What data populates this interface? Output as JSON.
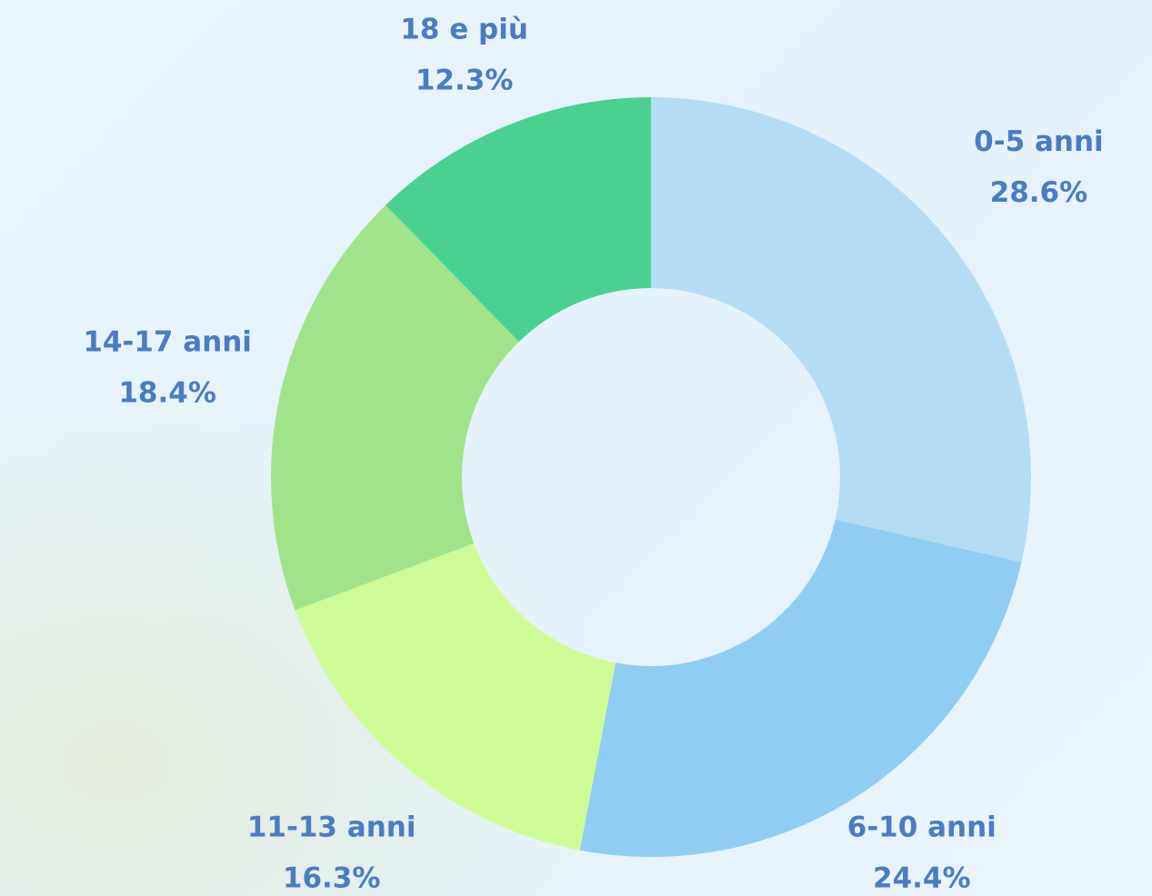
{
  "chart_data": {
    "type": "donut",
    "categories": [
      "0-5 anni",
      "6-10 anni",
      "11-13 anni",
      "14-17 anni",
      "18 e più"
    ],
    "values": [
      28.6,
      24.4,
      16.3,
      18.4,
      12.3
    ],
    "value_labels": [
      "28.6%",
      "24.4%",
      "16.3%",
      "18.4%",
      "12.3%"
    ],
    "colors": [
      "#b4dcf5",
      "#90cdf2",
      "#cdfc97",
      "#a1e38a",
      "#4ad191"
    ]
  }
}
